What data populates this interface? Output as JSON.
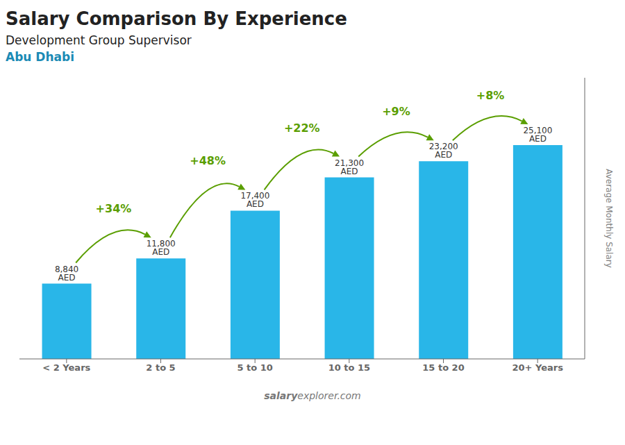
{
  "chart_data": {
    "type": "bar",
    "title": "Salary Comparison By Experience",
    "subtitle": "Development Group Supervisor",
    "city": "Abu Dhabi",
    "ylabel": "Average Monthly Salary",
    "watermark": [
      "salary",
      "explorer.com"
    ],
    "categories": [
      "< 2 Years",
      "2 to 5",
      "5 to 10",
      "10 to 15",
      "15 to 20",
      "20+ Years"
    ],
    "values": [
      8840,
      11800,
      17400,
      21300,
      23200,
      25100
    ],
    "value_labels": [
      "8,840 AED",
      "11,800 AED",
      "17,400 AED",
      "21,300 AED",
      "23,200 AED",
      "25,100 AED"
    ],
    "data_labels": true,
    "annotations": [
      null,
      "+34%",
      "+48%",
      "+22%",
      "+9%",
      "+8%"
    ],
    "color": "#29b6e8",
    "ylim": [
      0,
      33000
    ],
    "tick_labels": "x",
    "grid": false
  }
}
